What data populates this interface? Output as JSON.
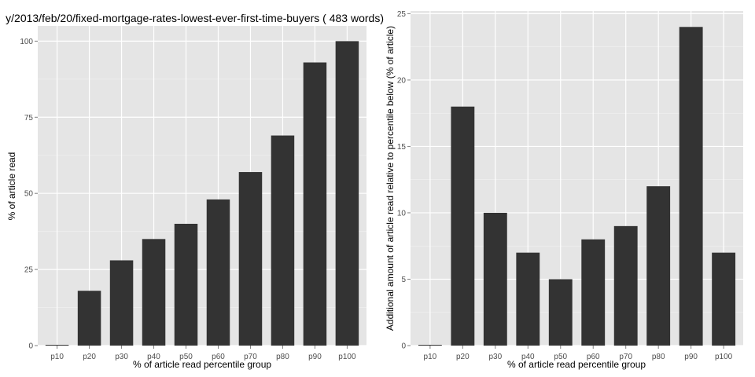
{
  "colors": {
    "panel": "#e5e5e5",
    "grid_major": "#ffffff",
    "grid_minor": "#f2f2f2",
    "bar": "#333333",
    "tick": "#4d4d4d"
  },
  "chart_data": [
    {
      "type": "bar",
      "title": "y/2013/feb/20/fixed-mortgage-rates-lowest-ever-first-time-buyers ( 483 words)",
      "xlabel": "% of article read percentile group",
      "ylabel": "% of article read",
      "categories": [
        "p10",
        "p20",
        "p30",
        "p40",
        "p50",
        "p60",
        "p70",
        "p80",
        "p90",
        "p100"
      ],
      "values": [
        0,
        18,
        28,
        35,
        40,
        48,
        57,
        69,
        93,
        100
      ],
      "ylim": [
        0,
        105
      ],
      "yticks": [
        0,
        25,
        50,
        75,
        100
      ],
      "grid": true,
      "legend": "none"
    },
    {
      "type": "bar",
      "title": "",
      "xlabel": "% of article read percentile group",
      "ylabel": "Additional amount of article read relative to percentile below (% of article)",
      "categories": [
        "p10",
        "p20",
        "p30",
        "p40",
        "p50",
        "p60",
        "p70",
        "p80",
        "p90",
        "p100"
      ],
      "values": [
        0,
        18,
        10,
        7,
        5,
        8,
        9,
        12,
        24,
        7
      ],
      "ylim": [
        0,
        25.2
      ],
      "yticks": [
        0,
        5,
        10,
        15,
        20,
        25
      ],
      "grid": true,
      "legend": "none"
    }
  ]
}
